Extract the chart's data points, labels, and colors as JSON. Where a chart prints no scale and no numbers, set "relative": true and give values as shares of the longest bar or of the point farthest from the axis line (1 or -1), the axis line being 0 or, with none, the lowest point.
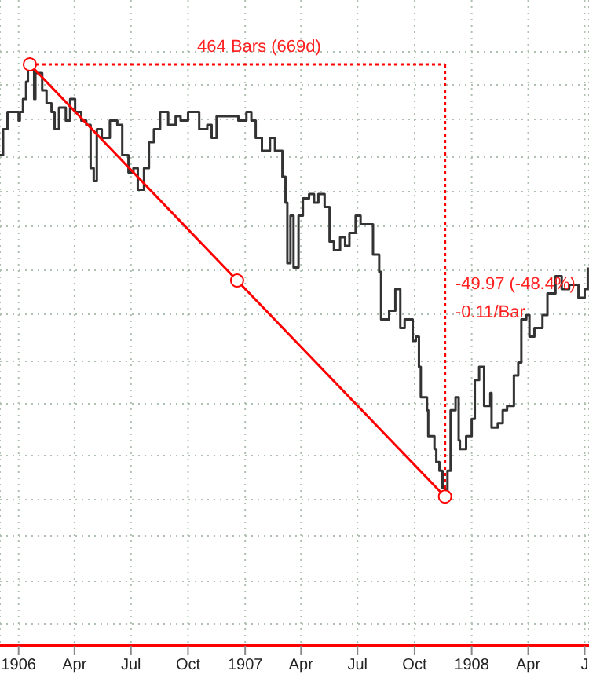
{
  "chart_data": {
    "type": "step",
    "relative": true,
    "legend": false,
    "grid": true,
    "tick_labels": "x",
    "xlim": [
      "1905-12-02",
      "1908-07-08"
    ],
    "xticks": [
      {
        "value": "1906-01-01",
        "label": "1906"
      },
      {
        "value": "1906-04-01",
        "label": "Apr"
      },
      {
        "value": "1906-07-01",
        "label": "Jul"
      },
      {
        "value": "1906-10-01",
        "label": "Oct"
      },
      {
        "value": "1907-01-01",
        "label": "1907"
      },
      {
        "value": "1907-04-01",
        "label": "Apr"
      },
      {
        "value": "1907-07-01",
        "label": "Jul"
      },
      {
        "value": "1907-10-01",
        "label": "Oct"
      },
      {
        "value": "1908-01-01",
        "label": "1908"
      },
      {
        "value": "1908-04-01",
        "label": "Apr"
      },
      {
        "value": "1908-07-01",
        "label": "J"
      }
    ],
    "annotations": [
      "464 Bars (669d)",
      "-49.97 (-48.4%)",
      "-0.11/Bar"
    ],
    "series": [
      {
        "color": "#333333",
        "marker": "none",
        "x": [
          "1905-12-02",
          "1905-12-07",
          "1905-12-14",
          "1905-12-22",
          "1906-01-01",
          "1906-01-03",
          "1906-01-08",
          "1906-01-13",
          "1906-01-16",
          "1906-01-19",
          "1906-01-26",
          "1906-01-28",
          "1906-02-08",
          "1906-02-15",
          "1906-02-23",
          "1906-02-28",
          "1906-03-07",
          "1906-03-18",
          "1906-03-25",
          "1906-04-02",
          "1906-04-12",
          "1906-04-20",
          "1906-04-27",
          "1906-05-02",
          "1906-05-07",
          "1906-05-15",
          "1906-05-28",
          "1906-06-09",
          "1906-06-17",
          "1906-06-27",
          "1906-07-05",
          "1906-07-12",
          "1906-07-22",
          "1906-07-30",
          "1906-08-07",
          "1906-08-17",
          "1906-08-30",
          "1906-09-11",
          "1906-09-19",
          "1906-10-01",
          "1906-10-09",
          "1906-10-19",
          "1906-11-01",
          "1906-11-08",
          "1906-11-16",
          "1906-11-29",
          "1906-12-11",
          "1906-12-21",
          "1907-01-03",
          "1907-01-11",
          "1907-01-18",
          "1907-01-28",
          "1907-02-10",
          "1907-02-18",
          "1907-02-25",
          "1907-03-02",
          "1907-03-07",
          "1907-03-10",
          "1907-03-15",
          "1907-03-20",
          "1907-03-28",
          "1907-04-04",
          "1907-04-14",
          "1907-04-22",
          "1907-04-29",
          "1907-05-09",
          "1907-05-17",
          "1907-05-24",
          "1907-06-03",
          "1907-06-11",
          "1907-06-18",
          "1907-06-28",
          "1907-07-06",
          "1907-07-19",
          "1907-07-26",
          "1907-08-05",
          "1907-08-08",
          "1907-08-21",
          "1907-08-31",
          "1907-09-08",
          "1907-09-15",
          "1907-09-28",
          "1907-10-03",
          "1907-10-08",
          "1907-10-11",
          "1907-10-21",
          "1907-10-23",
          "1907-11-02",
          "1907-11-05",
          "1907-11-10",
          "1907-11-15",
          "1907-11-19",
          "1907-11-23",
          "1907-11-28",
          "1907-12-06",
          "1907-12-11",
          "1907-12-13",
          "1907-12-23",
          "1908-01-01",
          "1908-01-06",
          "1908-01-13",
          "1908-01-21",
          "1908-01-31",
          "1908-02-02",
          "1908-02-12",
          "1908-02-20",
          "1908-02-27",
          "1908-03-09",
          "1908-03-16",
          "1908-03-21",
          "1908-03-29",
          "1908-04-03",
          "1908-04-11",
          "1908-04-24",
          "1908-05-02",
          "1908-05-15",
          "1908-05-25",
          "1908-06-06",
          "1908-06-21",
          "1908-07-01",
          "1908-07-06"
        ],
        "values": [
          0.79,
          0.85,
          0.89,
          0.89,
          0.87,
          0.89,
          0.92,
          0.96,
          0.99,
          1,
          0.92,
          0.98,
          0.94,
          0.91,
          0.89,
          0.85,
          0.9,
          0.87,
          0.92,
          0.89,
          0.87,
          0.86,
          0.76,
          0.73,
          0.85,
          0.83,
          0.87,
          0.86,
          0.79,
          0.75,
          0.76,
          0.71,
          0.76,
          0.82,
          0.85,
          0.89,
          0.86,
          0.88,
          0.87,
          0.89,
          0.89,
          0.85,
          0.86,
          0.83,
          0.88,
          0.88,
          0.88,
          0.87,
          0.89,
          0.87,
          0.83,
          0.8,
          0.83,
          0.8,
          0.8,
          0.74,
          0.68,
          0.54,
          0.65,
          0.53,
          0.65,
          0.69,
          0.7,
          0.68,
          0.7,
          0.67,
          0.59,
          0.57,
          0.6,
          0.58,
          0.61,
          0.65,
          0.63,
          0.63,
          0.56,
          0.52,
          0.41,
          0.43,
          0.48,
          0.39,
          0.41,
          0.36,
          0.37,
          0.3,
          0.23,
          0.2,
          0.14,
          0.11,
          0.08,
          0.06,
          0.02,
          0,
          0.06,
          0.2,
          0.23,
          0.13,
          0.11,
          0.14,
          0.18,
          0.27,
          0.3,
          0.21,
          0.24,
          0.16,
          0.17,
          0.2,
          0.21,
          0.28,
          0.31,
          0.41,
          0.42,
          0.37,
          0.39,
          0.42,
          0.47,
          0.51,
          0.48,
          0.49,
          0.46,
          0.48,
          0.53
        ]
      },
      {
        "type": "line",
        "color": "#ff0000",
        "marker": "circle",
        "line_style": "solid",
        "x": [
          "1906-01-19",
          "1906-12-19",
          "1907-11-19"
        ],
        "values": [
          1,
          0.5,
          0
        ]
      },
      {
        "type": "line",
        "color": "#ff0000",
        "marker": "none",
        "line_style": "dotted",
        "x": [
          "1906-01-19",
          "1907-11-19"
        ],
        "values": [
          1,
          1
        ]
      },
      {
        "type": "line",
        "color": "#ff0000",
        "marker": "none",
        "line_style": "dotted",
        "x": [
          "1907-11-19",
          "1907-11-19"
        ],
        "values": [
          1,
          0
        ]
      }
    ]
  }
}
